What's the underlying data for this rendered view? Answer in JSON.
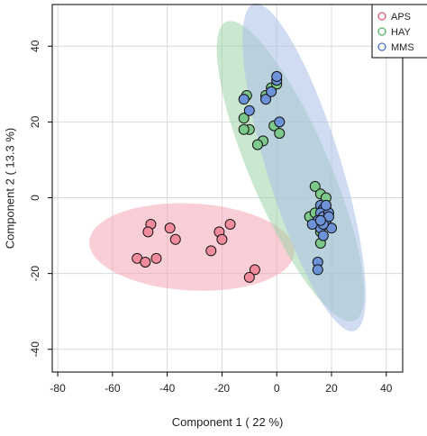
{
  "chart_data": {
    "type": "scatter",
    "title": "",
    "xlabel": "Component 1 ( 22 %)",
    "ylabel": "Component 2 ( 13.3 %)",
    "xlim": [
      -82,
      46
    ],
    "ylim": [
      -46,
      51
    ],
    "xticks": [
      -80,
      -60,
      -40,
      -20,
      0,
      20,
      40
    ],
    "yticks": [
      -40,
      -20,
      0,
      20,
      40
    ],
    "grid": true,
    "legend_position": "top-right",
    "series": [
      {
        "name": "APS",
        "color": "#e05a6e",
        "fill": "#f28b9c",
        "ellipse": {
          "cx": -31,
          "cy": -13,
          "rx": 37.5,
          "ry": 11.5,
          "angle": -2,
          "fill": "#f4a6b5"
        },
        "points": [
          [
            -46,
            -7
          ],
          [
            -47,
            -9
          ],
          [
            -39,
            -8
          ],
          [
            -37,
            -11
          ],
          [
            -51,
            -16
          ],
          [
            -48,
            -17
          ],
          [
            -44,
            -16
          ],
          [
            -21,
            -9
          ],
          [
            -20,
            -11
          ],
          [
            -17,
            -7
          ],
          [
            -24,
            -14
          ],
          [
            -8,
            -19
          ],
          [
            -10,
            -21
          ]
        ]
      },
      {
        "name": "HAY",
        "color": "#55b265",
        "fill": "#7dc98b",
        "ellipse": {
          "cx": 5,
          "cy": 7,
          "rx": 46,
          "ry": 13.5,
          "angle": -58,
          "fill": "#9fd3a7"
        },
        "points": [
          [
            -12,
            21
          ],
          [
            -10,
            18
          ],
          [
            -12,
            18
          ],
          [
            -5,
            15
          ],
          [
            -7,
            14
          ],
          [
            -4,
            27
          ],
          [
            -1,
            19
          ],
          [
            1,
            17
          ],
          [
            14,
            3
          ],
          [
            16,
            1
          ],
          [
            18,
            0
          ],
          [
            12,
            -5
          ],
          [
            15,
            -7
          ],
          [
            16,
            -9
          ],
          [
            16,
            -12
          ],
          [
            -11,
            27
          ],
          [
            -2,
            29
          ],
          [
            0,
            30
          ],
          [
            18,
            -3
          ],
          [
            14,
            -4
          ]
        ]
      },
      {
        "name": "MMS",
        "color": "#4a73c4",
        "fill": "#6d92d8",
        "ellipse": {
          "cx": 10,
          "cy": 8,
          "rx": 47,
          "ry": 13,
          "angle": -66,
          "fill": "#a9bfe8"
        },
        "points": [
          [
            0,
            31
          ],
          [
            -4,
            26
          ],
          [
            -2,
            28
          ],
          [
            -12,
            26
          ],
          [
            -10,
            23
          ],
          [
            1,
            20
          ],
          [
            0,
            32
          ],
          [
            16,
            -2
          ],
          [
            17,
            -3
          ],
          [
            18,
            -4
          ],
          [
            16,
            -4
          ],
          [
            17,
            -5
          ],
          [
            15,
            -6
          ],
          [
            19,
            -4
          ],
          [
            20,
            -8
          ],
          [
            18,
            -6
          ],
          [
            16,
            -8
          ],
          [
            13,
            -7
          ],
          [
            17,
            -10
          ],
          [
            15,
            -17
          ],
          [
            15,
            -19
          ],
          [
            18,
            -2
          ],
          [
            19,
            -5
          ],
          [
            17,
            -7
          ],
          [
            16,
            -6
          ]
        ]
      }
    ]
  }
}
